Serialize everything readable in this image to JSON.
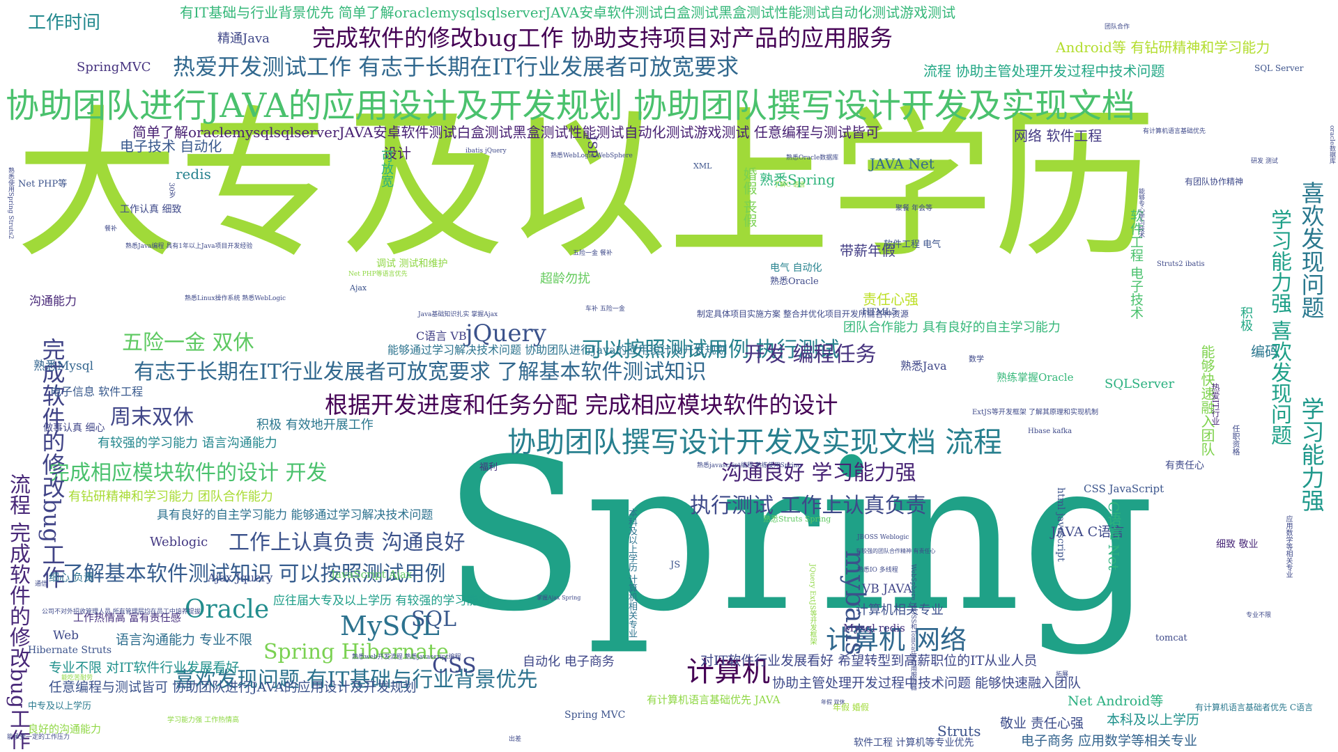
{
  "words": [
    {
      "text": "大专及以上学历",
      "color": "#a0da39"
    },
    {
      "text": "Spring",
      "color": "#1fa187"
    },
    {
      "text": "协助团队进行JAVA的应用设计及开发规划 协助团队撰写设计开发及实现文档",
      "color": "#4ac16d"
    },
    {
      "text": "协助团队撰写设计开发及实现文档 流程",
      "color": "#277f8e"
    },
    {
      "text": "完成软件的修改bug工作 协助支持项目对产品的应用服务",
      "color": "#440154"
    },
    {
      "text": "热爱开发测试工作 有志于长期在IT行业发展者可放宽要求",
      "color": "#31688e"
    },
    {
      "text": "根据开发进度和任务分配 完成相应模块软件的设计",
      "color": "#440154"
    },
    {
      "text": "有志于长期在IT行业发展者可放宽要求 了解基本软件测试知识",
      "color": "#31688e"
    },
    {
      "text": "完成相应模块软件的设计 开发",
      "color": "#4ac16d"
    },
    {
      "text": "了解基本软件测试知识 可以按照测试用例",
      "color": "#365c8d"
    },
    {
      "text": "工作上认真负责 沟通良好",
      "color": "#3b528b"
    },
    {
      "text": "执行测试 工作上认真负责",
      "color": "#3e4989"
    },
    {
      "text": "沟通良好 学习能力强",
      "color": "#482475"
    },
    {
      "text": "可以按照测试用例 执行测试",
      "color": "#26828e"
    },
    {
      "text": "开发 编程任务",
      "color": "#46327e"
    },
    {
      "text": "计算机 网络",
      "color": "#31688e"
    },
    {
      "text": "计算机",
      "color": "#440154"
    },
    {
      "text": "喜欢发现问题 有IT基础与行业背景优先",
      "color": "#2c728e"
    },
    {
      "text": "Spring Hibernate",
      "color": "#7ad151"
    },
    {
      "text": "MySQL",
      "color": "#2c728e"
    },
    {
      "text": "Oracle",
      "color": "#228d8d"
    },
    {
      "text": "jQuery",
      "color": "#3b528b"
    },
    {
      "text": "五险一金 双休",
      "color": "#5ec962"
    },
    {
      "text": "周末双休",
      "color": "#404688"
    },
    {
      "text": "mybatis",
      "color": "#3b528b"
    },
    {
      "text": "SQL",
      "color": "#38588c"
    },
    {
      "text": "CSS",
      "color": "#3e4989"
    },
    {
      "text": "工作时间",
      "color": "#23898e"
    },
    {
      "text": "完成软件的修改bug工作",
      "color": "#414487"
    },
    {
      "text": "流程 完成软件的修改bug工作",
      "color": "#482878"
    },
    {
      "text": "喜欢发现问题",
      "color": "#2a788e"
    },
    {
      "text": "学习能力强",
      "color": "#1f988b"
    },
    {
      "text": "有IT基础与行业背景优先 简单了解oraclemysqlsqlserverJAVA安卓软件测试白盒测试黑盒测试性能测试自动化测试游戏测试",
      "color": "#35b779"
    },
    {
      "text": "简单了解oraclemysqlsqlserverJAVA安卓软件测试白盒测试黑盒测试性能测试自动化测试游戏测试 任意编程与测试皆可",
      "color": "#482173"
    },
    {
      "text": "精通Java",
      "color": "#3f4788"
    },
    {
      "text": "SpringMVC",
      "color": "#46337f"
    },
    {
      "text": "Android等 有钻研精神和学习能力",
      "color": "#b2dd2d"
    },
    {
      "text": "流程 协助主管处理开发过程中技术问题",
      "color": "#22a785"
    },
    {
      "text": "网络 软件工程",
      "color": "#443a83"
    },
    {
      "text": "电子技术 自动化",
      "color": "#38588c"
    },
    {
      "text": "设计",
      "color": "#482071"
    },
    {
      "text": "redis",
      "color": "#26828e"
    },
    {
      "text": "熟悉Spring",
      "color": "#2fb47c"
    },
    {
      "text": "JAVA Net",
      "color": "#31688e"
    },
    {
      "text": "婚假 丧假",
      "color": "#7ad151"
    },
    {
      "text": "带薪年假",
      "color": "#433e85"
    },
    {
      "text": "责任心强",
      "color": "#bddf26"
    },
    {
      "text": "团队合作能力 具有良好的自主学习能力",
      "color": "#35b779"
    },
    {
      "text": "能够通过学习解决技术问题 协助团队进行Java的应用设计及开发规划",
      "color": "#2c738e"
    },
    {
      "text": "熟悉Mysql",
      "color": "#32648e"
    },
    {
      "text": "电子信息 软件工程",
      "color": "#38598c"
    },
    {
      "text": "积极 有效地开展工作",
      "color": "#2a768e"
    },
    {
      "text": "有较强的学习能力 语言沟通能力",
      "color": "#24878e"
    },
    {
      "text": "有钻研精神和学习能力 团队合作能力",
      "color": "#a8db34"
    },
    {
      "text": "具有良好的自主学习能力 能够通过学习解决技术问题",
      "color": "#2c718e"
    },
    {
      "text": "Weblogic",
      "color": "#443983"
    },
    {
      "text": "Ajax Jquery",
      "color": "#3d4e8a"
    },
    {
      "text": "应往届大专及以上学历 有较强的学习能力",
      "color": "#1f9e89"
    },
    {
      "text": "语言沟通能力 专业不限",
      "color": "#2e6e8e"
    },
    {
      "text": "专业不限 对IT软件行业发展看好",
      "color": "#21918c"
    },
    {
      "text": "任意编程与测试皆可 协助团队进行JAVA的应用设计及开发规划",
      "color": "#3b528b"
    },
    {
      "text": "对IT软件行业发展看好 希望转型到高薪职位的IT从业人员",
      "color": "#3f4889"
    },
    {
      "text": "协助主管处理开发过程中技术问题 能够快速融入团队",
      "color": "#3e4a89"
    },
    {
      "text": "计算机相关专业",
      "color": "#3c508b"
    },
    {
      "text": "Mysql redis",
      "color": "#46307e"
    },
    {
      "text": "VB JAVA",
      "color": "#404588"
    },
    {
      "text": "自动化 电子商务",
      "color": "#3f4788"
    },
    {
      "text": "Net Android等",
      "color": "#29af7f"
    },
    {
      "text": "本科及以上学历",
      "color": "#20928c"
    },
    {
      "text": "敬业 责任心强",
      "color": "#3d4d8a"
    },
    {
      "text": "电子商务 应用数学等相关专业",
      "color": "#33638d"
    },
    {
      "text": "Struts",
      "color": "#3b528b"
    },
    {
      "text": "JAVA C语言",
      "color": "#3e4989"
    },
    {
      "text": "CSS JavaScript",
      "color": "#3a548c"
    },
    {
      "text": "C语言 Net",
      "color": "#2db27d"
    },
    {
      "text": "SQLServer",
      "color": "#2ab07f"
    },
    {
      "text": "熟悉Java",
      "color": "#3f4788"
    },
    {
      "text": "熟练掌握Oracle",
      "color": "#35b779"
    },
    {
      "text": "编码",
      "color": "#2a768e"
    },
    {
      "text": "积极",
      "color": "#22a884"
    },
    {
      "text": "能够快速融入团队",
      "color": "#7fd34e"
    },
    {
      "text": "学习能力强 喜欢发现问题",
      "color": "#1fa088"
    },
    {
      "text": "软件工程 电子技术",
      "color": "#4ac16d"
    },
    {
      "text": "可放宽",
      "color": "#2ab07f"
    },
    {
      "text": "JSP",
      "color": "#46327e"
    },
    {
      "text": "超龄勿扰",
      "color": "#65cb5e"
    },
    {
      "text": "沟通能力",
      "color": "#482878"
    },
    {
      "text": "C语言 VB",
      "color": "#424086"
    },
    {
      "text": "Web",
      "color": "#3e4989"
    },
    {
      "text": "JavaScript Ajax",
      "color": "#5ec962"
    },
    {
      "text": "Hibernate Struts",
      "color": "#3b528b"
    },
    {
      "text": "HTML5",
      "color": "#3b528b"
    },
    {
      "text": "Net PHP等",
      "color": "#3b528b"
    },
    {
      "text": "细心 负责",
      "color": "#2c728e"
    },
    {
      "text": "工作热情高 富有责任感",
      "color": "#46307e"
    },
    {
      "text": "做事认真 细心",
      "color": "#404688"
    },
    {
      "text": "中专及以上学历",
      "color": "#29798e"
    },
    {
      "text": "良好的沟通能力",
      "color": "#8fd744"
    },
    {
      "text": "年假 婚假",
      "color": "#a0da39"
    },
    {
      "text": "软件工程 计算机等专业优先",
      "color": "#3d4e8a"
    },
    {
      "text": "有计算机语言基础优先 JAVA",
      "color": "#8fd744"
    },
    {
      "text": "有计算机语言基础者优先 C语言",
      "color": "#2a788e"
    },
    {
      "text": "tomcat",
      "color": "#3e4989"
    },
    {
      "text": "细致 敬业",
      "color": "#482878"
    },
    {
      "text": "有责任心",
      "color": "#3e4989"
    },
    {
      "text": "福利",
      "color": "#46307e"
    },
    {
      "text": "html javascript",
      "color": "#3b528b"
    },
    {
      "text": "Spring MVC",
      "color": "#3b528b"
    },
    {
      "text": "本科及以上学历 计算机相关专业",
      "color": "#2c738e"
    },
    {
      "text": "电气 自动化",
      "color": "#26828e"
    },
    {
      "text": "熟悉Oracle",
      "color": "#3e4989"
    },
    {
      "text": "软件工程 电气",
      "color": "#3b528b"
    },
    {
      "text": "调试 测试和维护",
      "color": "#8fd744"
    },
    {
      "text": "熟悉Struts Spring",
      "color": "#5ec962"
    },
    {
      "text": "SQL Server",
      "color": "#3b528b"
    },
    {
      "text": "Ajax",
      "color": "#3b528b"
    },
    {
      "text": "XML",
      "color": "#3b528b"
    },
    {
      "text": "JS",
      "color": "#3b528b"
    },
    {
      "text": "工作认真 细致",
      "color": "#3e4989"
    },
    {
      "text": "30岁",
      "color": "#3e4989"
    },
    {
      "text": "制定具体项目实施方案 整合并优化项目开发所需各种资源",
      "color": "#3e4989"
    },
    {
      "text": "Java基础知识扎实 掌握Ajax",
      "color": "#3e4989"
    },
    {
      "text": "熟悉Linux操作系统 熟悉WebLogic",
      "color": "#3e4989"
    },
    {
      "text": "熟悉javascript编程 熟练使用Spring",
      "color": "#3e4989"
    },
    {
      "text": "Hbase kafka",
      "color": "#3e4989"
    },
    {
      "text": "ExtJS等开发框架 了解其原理和实现机制",
      "color": "#3e4989"
    },
    {
      "text": "热爱IT行业",
      "color": "#482878"
    },
    {
      "text": "任职资格",
      "color": "#3e4989"
    },
    {
      "text": "数学",
      "color": "#3e4989"
    },
    {
      "text": "有团队协作精神",
      "color": "#3e4989"
    },
    {
      "text": "Struts2 ibatis",
      "color": "#3e4989"
    },
    {
      "text": "ibatis jQuery",
      "color": "#3e4989"
    },
    {
      "text": "Net PHP等语言优先",
      "color": "#8fd744"
    },
    {
      "text": "熟悉web开发流程 熟悉javascript编程",
      "color": "#3e4989"
    },
    {
      "text": "熟悉IO 多线程",
      "color": "#3e4989"
    },
    {
      "text": "JBOSS Weblogic",
      "color": "#3e4989"
    },
    {
      "text": "有较强的团队合作精神 有责任心",
      "color": "#3e4989"
    },
    {
      "text": "掌握Ajax Spring",
      "color": "#3e4989"
    },
    {
      "text": "熟悉WebLogic WebSphere",
      "color": "#3e4989"
    },
    {
      "text": "聚餐 年会等",
      "color": "#3e4989"
    },
    {
      "text": "应用数学等相关专业",
      "color": "#3e4989"
    },
    {
      "text": "学习能力强 工作热情高",
      "color": "#8fd744"
    },
    {
      "text": "能承受一定的工作压力",
      "color": "#3e4989"
    },
    {
      "text": "熟悉使用Spring Struts2",
      "color": "#3e4989"
    },
    {
      "text": "车补 五险一金",
      "color": "#3e4989"
    },
    {
      "text": "五险一金 餐补",
      "color": "#3e4989"
    },
    {
      "text": "了解C 语言",
      "color": "#8fd744"
    },
    {
      "text": "熟悉Oracle数据库",
      "color": "#3e4989"
    },
    {
      "text": "能够专心学习技术",
      "color": "#3e4989"
    },
    {
      "text": "专业不限",
      "color": "#3e4989"
    },
    {
      "text": "年假 双休",
      "color": "#3e4989"
    },
    {
      "text": "oracle数据库",
      "color": "#3e4989"
    },
    {
      "text": "有计算机语言基础优先",
      "color": "#3e4989"
    },
    {
      "text": "团队合作",
      "color": "#3e4989"
    },
    {
      "text": "熟悉Java编程 具有1年以上Java项目开发经验",
      "color": "#3e4989"
    },
    {
      "text": "能吃苦耐劳",
      "color": "#8fd744"
    },
    {
      "text": "拓展",
      "color": "#3e4989"
    },
    {
      "text": "研发 测试",
      "color": "#3e4989"
    },
    {
      "text": "JQuery ExtJS等开发框架",
      "color": "#8fd744"
    },
    {
      "text": "WebSphere JBOSS和Tomcat等应用服务器",
      "color": "#3e4989"
    },
    {
      "text": "公司不对外招收管理人员 所有管理层均在员工中培养提拔",
      "color": "#3e4989"
    },
    {
      "text": "出差",
      "color": "#3e4989"
    },
    {
      "text": "通信",
      "color": "#3e4989"
    },
    {
      "text": "餐补",
      "color": "#3e4989"
    }
  ]
}
